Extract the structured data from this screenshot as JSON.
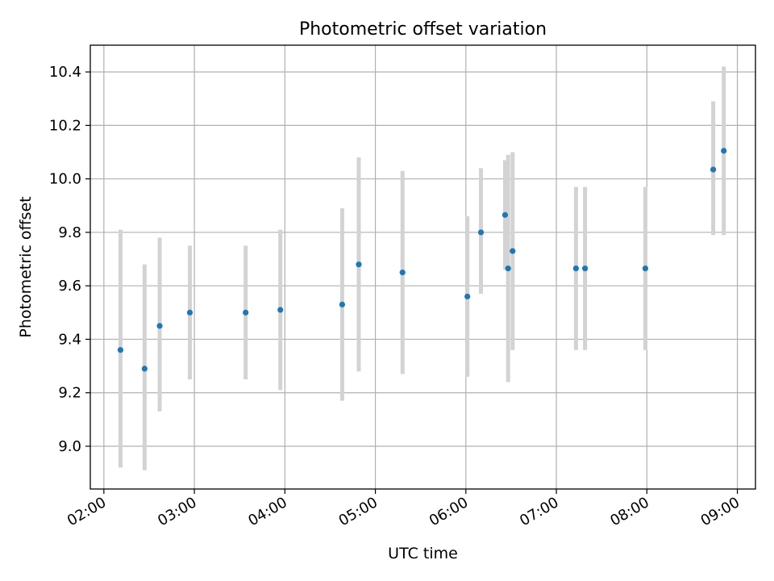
{
  "chart_data": {
    "type": "scatter",
    "title": "Photometric offset variation",
    "xlabel": "UTC time",
    "ylabel": "Photometric offset",
    "x_format": "HH:MM",
    "xlim": [
      "01:51",
      "09:12"
    ],
    "ylim": [
      8.84,
      10.5
    ],
    "x_ticks": [
      "02:00",
      "03:00",
      "04:00",
      "05:00",
      "06:00",
      "07:00",
      "08:00",
      "09:00"
    ],
    "y_ticks": [
      "9.0",
      "9.2",
      "9.4",
      "9.6",
      "9.8",
      "10.0",
      "10.2",
      "10.4"
    ],
    "grid": true,
    "colors": {
      "point": "#1f77b4",
      "errorbar": "#d3d3d3",
      "grid": "#b0b0b0"
    },
    "points": [
      {
        "x": "02:11",
        "y": 9.36,
        "ylow": 8.92,
        "yhigh": 9.81
      },
      {
        "x": "02:27",
        "y": 9.29,
        "ylow": 8.91,
        "yhigh": 9.68
      },
      {
        "x": "02:37",
        "y": 9.45,
        "ylow": 9.13,
        "yhigh": 9.78
      },
      {
        "x": "02:57",
        "y": 9.5,
        "ylow": 9.25,
        "yhigh": 9.75
      },
      {
        "x": "03:34",
        "y": 9.5,
        "ylow": 9.25,
        "yhigh": 9.75
      },
      {
        "x": "03:57",
        "y": 9.51,
        "ylow": 9.21,
        "yhigh": 9.81
      },
      {
        "x": "04:38",
        "y": 9.53,
        "ylow": 9.17,
        "yhigh": 9.89
      },
      {
        "x": "04:49",
        "y": 9.68,
        "ylow": 9.28,
        "yhigh": 10.08
      },
      {
        "x": "05:18",
        "y": 9.65,
        "ylow": 9.27,
        "yhigh": 10.03
      },
      {
        "x": "06:01",
        "y": 9.56,
        "ylow": 9.26,
        "yhigh": 9.86
      },
      {
        "x": "06:10",
        "y": 9.8,
        "ylow": 9.57,
        "yhigh": 10.04
      },
      {
        "x": "06:26",
        "y": 9.865,
        "ylow": 9.66,
        "yhigh": 10.07
      },
      {
        "x": "06:28",
        "y": 9.665,
        "ylow": 9.24,
        "yhigh": 10.09
      },
      {
        "x": "06:31",
        "y": 9.73,
        "ylow": 9.36,
        "yhigh": 10.1
      },
      {
        "x": "07:13",
        "y": 9.665,
        "ylow": 9.36,
        "yhigh": 9.97
      },
      {
        "x": "07:19",
        "y": 9.665,
        "ylow": 9.36,
        "yhigh": 9.97
      },
      {
        "x": "07:59",
        "y": 9.665,
        "ylow": 9.36,
        "yhigh": 9.97
      },
      {
        "x": "08:44",
        "y": 10.035,
        "ylow": 9.79,
        "yhigh": 10.29
      },
      {
        "x": "08:51",
        "y": 10.105,
        "ylow": 9.79,
        "yhigh": 10.42
      }
    ]
  }
}
